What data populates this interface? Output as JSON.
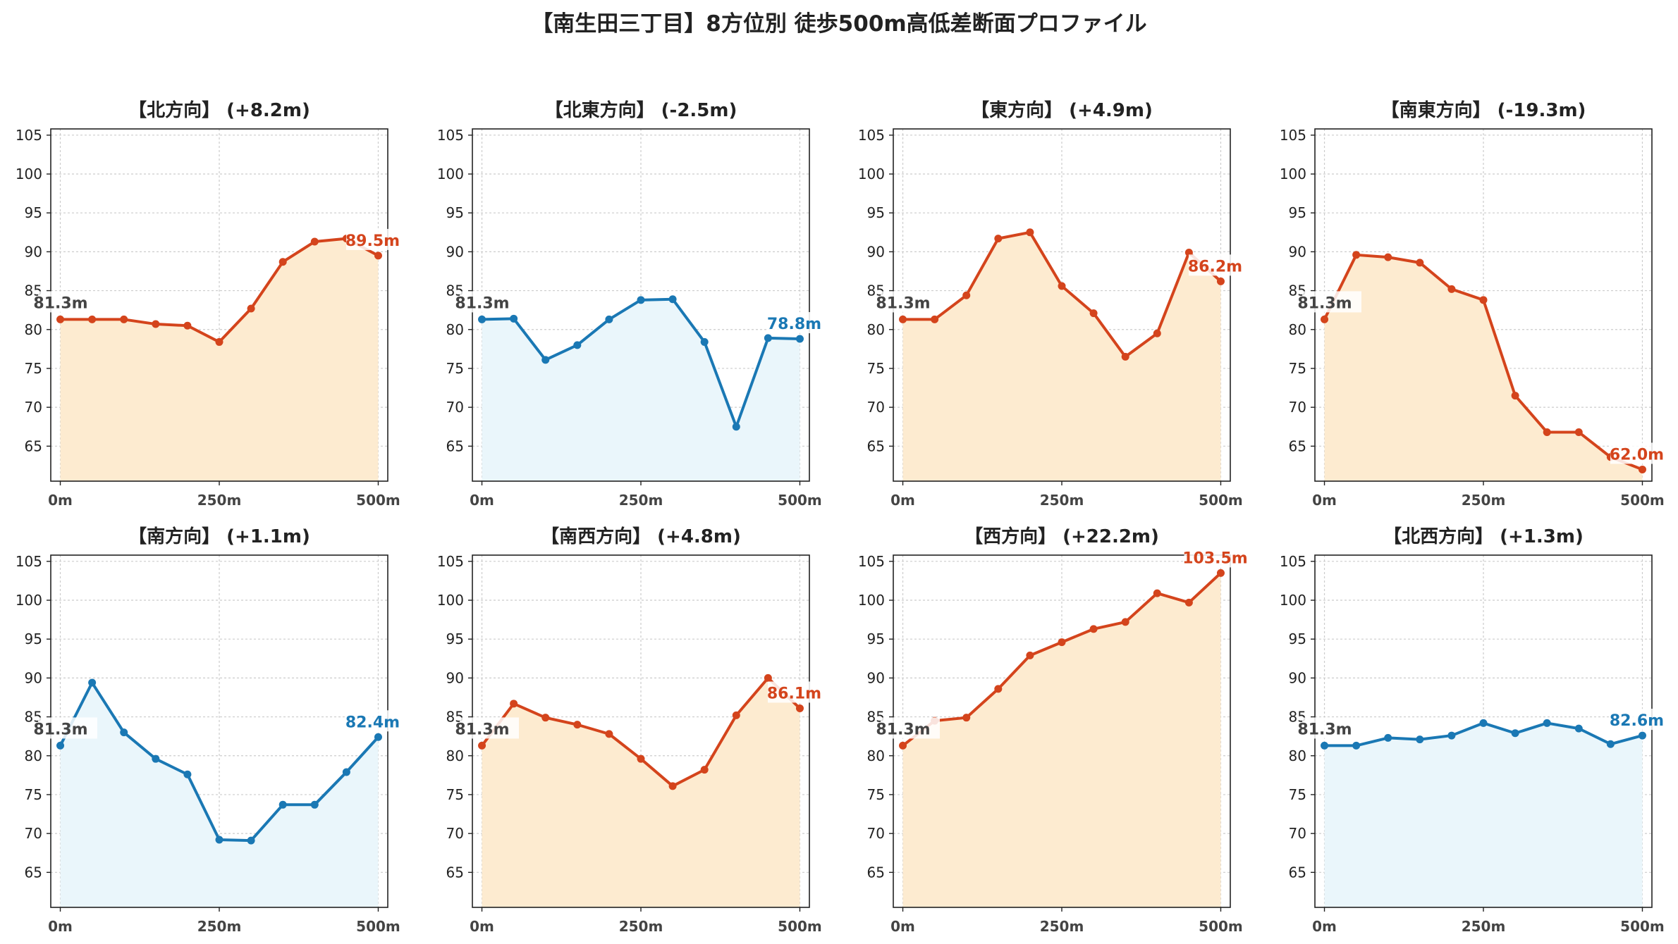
{
  "title": "【南生田三丁目】8方位別 徒歩500m高低差断面プロファイル",
  "colors": {
    "up_line": "#d4441c",
    "up_fill": "#fdebd0",
    "down_line": "#1a78b4",
    "down_fill": "#eaf6fb",
    "start_label": "#444444"
  },
  "chart_data": [
    {
      "type": "line",
      "title": "【北方向】 (+8.2m)",
      "trend": "up",
      "x": [
        0,
        50,
        100,
        150,
        200,
        250,
        300,
        350,
        400,
        450,
        500
      ],
      "values": [
        81.3,
        81.3,
        81.3,
        80.7,
        80.5,
        78.4,
        82.7,
        88.7,
        91.3,
        91.7,
        89.5
      ],
      "start_label": "81.3m",
      "end_label": "89.5m"
    },
    {
      "type": "line",
      "title": "【北東方向】 (-2.5m)",
      "trend": "down",
      "x": [
        0,
        50,
        100,
        150,
        200,
        250,
        300,
        350,
        400,
        450,
        500
      ],
      "values": [
        81.3,
        81.4,
        76.1,
        78.0,
        81.3,
        83.8,
        83.9,
        78.4,
        67.5,
        78.9,
        78.8
      ],
      "start_label": "81.3m",
      "end_label": "78.8m"
    },
    {
      "type": "line",
      "title": "【東方向】 (+4.9m)",
      "trend": "up",
      "x": [
        0,
        50,
        100,
        150,
        200,
        250,
        300,
        350,
        400,
        450,
        500
      ],
      "values": [
        81.3,
        81.3,
        84.4,
        91.7,
        92.5,
        85.6,
        82.1,
        76.5,
        79.5,
        89.9,
        86.2
      ],
      "start_label": "81.3m",
      "end_label": "86.2m"
    },
    {
      "type": "line",
      "title": "【南東方向】 (-19.3m)",
      "trend": "up",
      "x": [
        0,
        50,
        100,
        150,
        200,
        250,
        300,
        350,
        400,
        450,
        500
      ],
      "values": [
        81.3,
        89.6,
        89.3,
        88.6,
        85.2,
        83.8,
        71.5,
        66.8,
        66.8,
        63.6,
        62.0
      ],
      "start_label": "81.3m",
      "end_label": "62.0m"
    },
    {
      "type": "line",
      "title": "【南方向】 (+1.1m)",
      "trend": "down",
      "x": [
        0,
        50,
        100,
        150,
        200,
        250,
        300,
        350,
        400,
        450,
        500
      ],
      "values": [
        81.3,
        89.4,
        83.0,
        79.6,
        77.6,
        69.2,
        69.1,
        73.7,
        73.7,
        77.9,
        82.4
      ],
      "start_label": "81.3m",
      "end_label": "82.4m"
    },
    {
      "type": "line",
      "title": "【南西方向】 (+4.8m)",
      "trend": "up",
      "x": [
        0,
        50,
        100,
        150,
        200,
        250,
        300,
        350,
        400,
        450,
        500
      ],
      "values": [
        81.3,
        86.7,
        84.9,
        84.0,
        82.8,
        79.6,
        76.1,
        78.2,
        85.2,
        90.0,
        86.1
      ],
      "start_label": "81.3m",
      "end_label": "86.1m"
    },
    {
      "type": "line",
      "title": "【西方向】 (+22.2m)",
      "trend": "up",
      "x": [
        0,
        50,
        100,
        150,
        200,
        250,
        300,
        350,
        400,
        450,
        500
      ],
      "values": [
        81.3,
        84.5,
        84.9,
        88.6,
        92.9,
        94.6,
        96.3,
        97.2,
        100.9,
        99.7,
        103.5
      ],
      "start_label": "81.3m",
      "end_label": "103.5m"
    },
    {
      "type": "line",
      "title": "【北西方向】 (+1.3m)",
      "trend": "down",
      "x": [
        0,
        50,
        100,
        150,
        200,
        250,
        300,
        350,
        400,
        450,
        500
      ],
      "values": [
        81.3,
        81.3,
        82.3,
        82.1,
        82.6,
        84.2,
        82.9,
        84.2,
        83.5,
        81.5,
        82.6
      ],
      "start_label": "81.3m",
      "end_label": "82.6m"
    }
  ],
  "axes": {
    "yticks": [
      65,
      70,
      75,
      80,
      85,
      90,
      95,
      100,
      105
    ],
    "ylim": [
      60.5,
      105.8
    ],
    "xticks": [
      0,
      250,
      500
    ],
    "xtick_labels": [
      "0m",
      "250m",
      "500m"
    ],
    "xlim": [
      -15,
      515
    ],
    "grid": true
  }
}
